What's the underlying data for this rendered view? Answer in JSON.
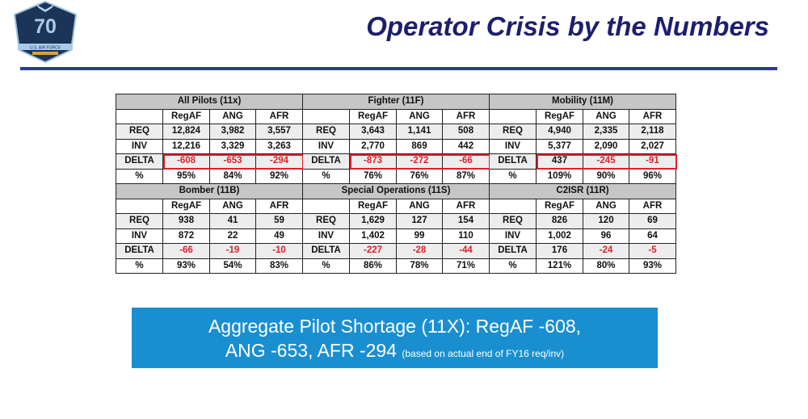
{
  "title": "Operator Crisis by the Numbers",
  "logo": {
    "text": "70",
    "subtext": "U.S. AIR FORCE"
  },
  "columns": [
    "",
    "RegAF",
    "ANG",
    "AFR"
  ],
  "blocks": [
    {
      "name": "All Pilots (11x)",
      "highlight": true,
      "rows": [
        [
          "REQ",
          "12,824",
          "3,982",
          "3,557"
        ],
        [
          "INV",
          "12,216",
          "3,329",
          "3,263"
        ],
        [
          "DELTA",
          "-608",
          "-653",
          "-294"
        ],
        [
          "%",
          "95%",
          "84%",
          "92%"
        ]
      ]
    },
    {
      "name": "Fighter (11F)",
      "highlight": true,
      "rows": [
        [
          "REQ",
          "3,643",
          "1,141",
          "508"
        ],
        [
          "INV",
          "2,770",
          "869",
          "442"
        ],
        [
          "DELTA",
          "-873",
          "-272",
          "-66"
        ],
        [
          "%",
          "76%",
          "76%",
          "87%"
        ]
      ]
    },
    {
      "name": "Mobility (11M)",
      "highlight": true,
      "rows": [
        [
          "REQ",
          "4,940",
          "2,335",
          "2,118"
        ],
        [
          "INV",
          "5,377",
          "2,090",
          "2,027"
        ],
        [
          "DELTA",
          "437",
          "-245",
          "-91"
        ],
        [
          "%",
          "109%",
          "90%",
          "96%"
        ]
      ]
    },
    {
      "name": "Bomber (11B)",
      "highlight": false,
      "rows": [
        [
          "REQ",
          "938",
          "41",
          "59"
        ],
        [
          "INV",
          "872",
          "22",
          "49"
        ],
        [
          "DELTA",
          "-66",
          "-19",
          "-10"
        ],
        [
          "%",
          "93%",
          "54%",
          "83%"
        ]
      ]
    },
    {
      "name": "Special Operations (11S)",
      "highlight": false,
      "rows": [
        [
          "REQ",
          "1,629",
          "127",
          "154"
        ],
        [
          "INV",
          "1,402",
          "99",
          "110"
        ],
        [
          "DELTA",
          "-227",
          "-28",
          "-44"
        ],
        [
          "%",
          "86%",
          "78%",
          "71%"
        ]
      ]
    },
    {
      "name": "C2ISR (11R)",
      "highlight": false,
      "rows": [
        [
          "REQ",
          "826",
          "120",
          "69"
        ],
        [
          "INV",
          "1,002",
          "96",
          "64"
        ],
        [
          "DELTA",
          "176",
          "-24",
          "-5"
        ],
        [
          "%",
          "121%",
          "80%",
          "93%"
        ]
      ]
    }
  ],
  "banner": {
    "line1": "Aggregate Pilot Shortage (11X):  RegAF -608,",
    "line2": "ANG -653, AFR -294 ",
    "note": "(based on actual end of FY16 req/inv)"
  },
  "colors": {
    "title": "#1c1f6e",
    "rule": "#2b3c8f",
    "negative": "#e0202b",
    "banner": "#1a8fd0",
    "header": "#c6c6c6"
  }
}
